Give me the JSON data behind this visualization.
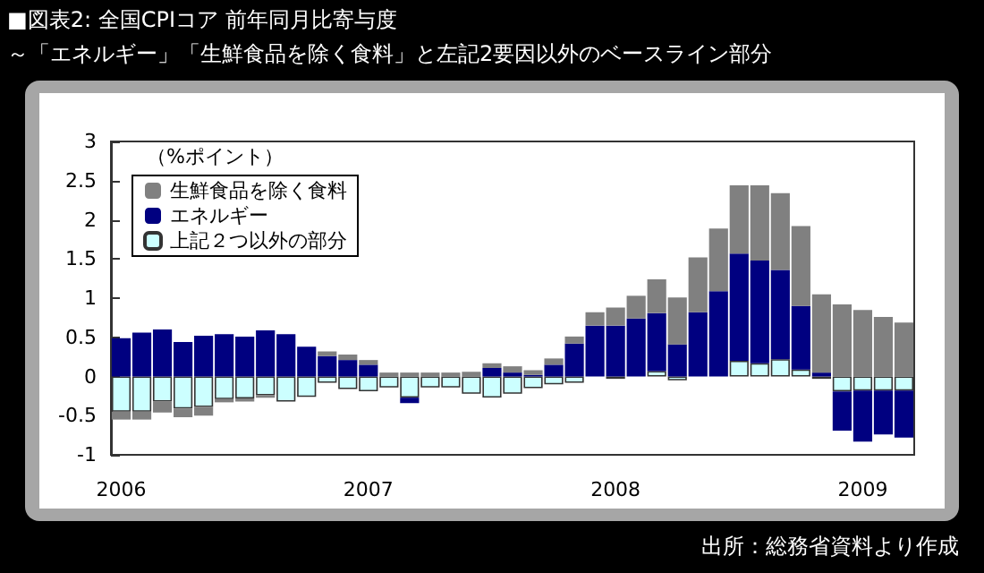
{
  "chart_data": {
    "type": "bar",
    "title": "■図表2: 全国CPIコア 前年同月比寄与度",
    "subtitle": "～「エネルギー」「生鮮食品を除く食料」と左記2要因以外のベースライン部分",
    "legend_title": "（%ポイント）",
    "annotations": [
      "出所：総務省資料より作成"
    ],
    "categories": [
      "2006",
      null,
      null,
      null,
      null,
      null,
      null,
      null,
      null,
      null,
      null,
      null,
      "2007",
      null,
      null,
      null,
      null,
      null,
      null,
      null,
      null,
      null,
      null,
      null,
      "2008",
      null,
      null,
      null,
      null,
      null,
      null,
      null,
      null,
      null,
      null,
      null,
      "2009",
      null,
      null
    ],
    "stacked": true,
    "ylim": [
      -1,
      3
    ],
    "yticks": [
      -1,
      -0.5,
      0,
      0.5,
      1,
      1.5,
      2,
      2.5,
      3
    ],
    "legend": "top left",
    "series": [
      {
        "name": "上記２つ以外の部分",
        "color": "#ccffff",
        "values": [
          -0.45,
          -0.45,
          -0.32,
          -0.41,
          -0.39,
          -0.29,
          -0.28,
          -0.24,
          -0.32,
          -0.26,
          -0.08,
          -0.16,
          -0.19,
          -0.14,
          -0.27,
          -0.14,
          -0.14,
          -0.22,
          -0.27,
          -0.22,
          -0.15,
          -0.1,
          -0.08,
          0,
          -0.03,
          0,
          0.07,
          -0.05,
          null,
          null,
          0.2,
          0.17,
          0.22,
          0.09,
          -0.03,
          -0.19,
          -0.18,
          -0.18,
          -0.18
        ]
      },
      {
        "name": "エネルギー",
        "color": "#000080",
        "values": [
          0.49,
          0.56,
          0.6,
          0.44,
          0.52,
          0.54,
          0.51,
          0.59,
          0.54,
          0.38,
          0.26,
          0.21,
          0.15,
          0,
          -0.07,
          0,
          0,
          0,
          0.11,
          0.05,
          0.02,
          0.15,
          0.42,
          0.65,
          0.65,
          0.74,
          0.74,
          0.41,
          0.82,
          1.09,
          1.37,
          1.31,
          1.14,
          0.81,
          0.05,
          -0.5,
          -0.65,
          -0.56,
          -0.6
        ]
      },
      {
        "name": "生鮮食品を除く食料",
        "color": "#808080",
        "values": [
          -0.1,
          -0.1,
          -0.14,
          -0.11,
          -0.11,
          -0.04,
          -0.04,
          -0.03,
          0,
          0,
          0.06,
          0.07,
          0.06,
          0.05,
          0.05,
          0.05,
          0.05,
          0.06,
          0.06,
          0.08,
          0.06,
          0.08,
          0.09,
          0.17,
          0.23,
          0.29,
          0.43,
          0.6,
          0.7,
          0.8,
          0.87,
          0.96,
          0.98,
          1.02,
          1,
          0.92,
          0.85,
          0.76,
          0.69
        ]
      }
    ]
  }
}
